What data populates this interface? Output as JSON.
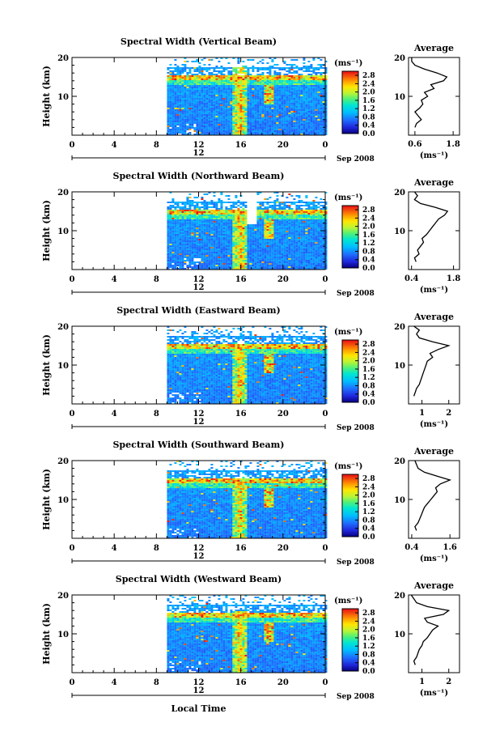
{
  "chart_data": {
    "type": "heatmap",
    "common": {
      "xlim": [
        0,
        24
      ],
      "x_ticks": [
        "0",
        "4",
        "8",
        "12",
        "16",
        "20",
        "0"
      ],
      "date_marker": "12",
      "date_suffix": "Sep 2008",
      "ylim": [
        0,
        20
      ],
      "y_ticks": [
        "10",
        "20"
      ],
      "ylabel": "Height (km)",
      "xlabel": "Local Time",
      "data_start_hour": 9,
      "colorbar_unit": "(ms⁻¹)",
      "colorbar_ticks": [
        "0.0",
        "0.4",
        "0.8",
        "1.2",
        "1.6",
        "2.0",
        "2.4",
        "2.8"
      ],
      "colorbar_range": [
        0.0,
        3.0
      ],
      "average_title": "Average",
      "average_unit": "(ms⁻¹)",
      "average_ylim": [
        0,
        20
      ],
      "average_y_ticks": [
        "10",
        "20"
      ]
    },
    "panels": [
      {
        "title": "Spectral Width (Vertical Beam)",
        "avg_xticks": [
          {
            "v": 0.6,
            "label": "0.6"
          },
          {
            "v": 1.8,
            "label": "1.8"
          }
        ],
        "avg_xlim": [
          0.4,
          2.0
        ],
        "avg_profile": [
          [
            0.6,
            2
          ],
          [
            0.65,
            3
          ],
          [
            0.8,
            4
          ],
          [
            0.7,
            5
          ],
          [
            0.6,
            6
          ],
          [
            0.75,
            7
          ],
          [
            0.85,
            8
          ],
          [
            0.8,
            9
          ],
          [
            1.0,
            10
          ],
          [
            0.9,
            11
          ],
          [
            1.2,
            12
          ],
          [
            1.1,
            13
          ],
          [
            1.5,
            14
          ],
          [
            1.6,
            15
          ],
          [
            1.3,
            16
          ],
          [
            0.9,
            17
          ],
          [
            0.6,
            18
          ],
          [
            0.5,
            19
          ],
          [
            0.5,
            20
          ]
        ]
      },
      {
        "title": "Spectral Width (Northward Beam)",
        "avg_xticks": [
          {
            "v": 0.4,
            "label": "0.4"
          },
          {
            "v": 1.8,
            "label": "1.8"
          }
        ],
        "avg_xlim": [
          0.3,
          2.0
        ],
        "avg_profile": [
          [
            0.55,
            2
          ],
          [
            0.5,
            3
          ],
          [
            0.65,
            4
          ],
          [
            0.6,
            5
          ],
          [
            0.7,
            6
          ],
          [
            0.8,
            7
          ],
          [
            0.75,
            8
          ],
          [
            0.9,
            9
          ],
          [
            1.0,
            10
          ],
          [
            1.1,
            11
          ],
          [
            1.2,
            12
          ],
          [
            1.3,
            13
          ],
          [
            1.5,
            14
          ],
          [
            1.6,
            15
          ],
          [
            1.2,
            16
          ],
          [
            0.7,
            17
          ],
          [
            0.5,
            18
          ],
          [
            0.6,
            19
          ],
          [
            0.5,
            20
          ]
        ]
      },
      {
        "title": "Spectral Width (Eastward Beam)",
        "avg_xticks": [
          {
            "v": 1,
            "label": "1"
          },
          {
            "v": 2,
            "label": "2"
          }
        ],
        "avg_xlim": [
          0.5,
          2.4
        ],
        "avg_profile": [
          [
            0.7,
            2
          ],
          [
            0.75,
            3
          ],
          [
            0.8,
            4
          ],
          [
            0.9,
            5
          ],
          [
            0.95,
            6
          ],
          [
            1.0,
            7
          ],
          [
            1.05,
            8
          ],
          [
            1.1,
            9
          ],
          [
            1.15,
            10
          ],
          [
            1.2,
            11
          ],
          [
            1.4,
            12
          ],
          [
            1.3,
            13
          ],
          [
            1.6,
            14
          ],
          [
            2.0,
            15
          ],
          [
            1.4,
            16
          ],
          [
            0.9,
            17
          ],
          [
            0.8,
            18
          ],
          [
            0.9,
            19
          ],
          [
            0.7,
            20
          ]
        ]
      },
      {
        "title": "Spectral Width (Southward Beam)",
        "avg_xticks": [
          {
            "v": 0.4,
            "label": "0.4"
          },
          {
            "v": 1.6,
            "label": "1.6"
          }
        ],
        "avg_xlim": [
          0.3,
          1.9
        ],
        "avg_profile": [
          [
            0.55,
            2
          ],
          [
            0.5,
            3
          ],
          [
            0.6,
            4
          ],
          [
            0.65,
            5
          ],
          [
            0.7,
            6
          ],
          [
            0.75,
            7
          ],
          [
            0.8,
            8
          ],
          [
            0.9,
            9
          ],
          [
            1.0,
            10
          ],
          [
            1.1,
            11
          ],
          [
            1.2,
            12
          ],
          [
            1.15,
            13
          ],
          [
            1.3,
            14
          ],
          [
            1.6,
            15
          ],
          [
            1.2,
            16
          ],
          [
            0.8,
            17
          ],
          [
            0.6,
            18
          ],
          [
            0.55,
            19
          ],
          [
            0.5,
            20
          ]
        ]
      },
      {
        "title": "Spectral Width (Westward Beam)",
        "avg_xticks": [
          {
            "v": 1,
            "label": "1"
          },
          {
            "v": 2,
            "label": "2"
          }
        ],
        "avg_xlim": [
          0.5,
          2.4
        ],
        "avg_profile": [
          [
            0.75,
            2
          ],
          [
            0.7,
            3
          ],
          [
            0.8,
            4
          ],
          [
            0.85,
            5
          ],
          [
            0.9,
            6
          ],
          [
            1.0,
            7
          ],
          [
            1.05,
            8
          ],
          [
            1.2,
            9
          ],
          [
            1.3,
            10
          ],
          [
            1.4,
            11
          ],
          [
            1.6,
            12
          ],
          [
            1.2,
            13
          ],
          [
            1.1,
            14
          ],
          [
            1.8,
            15
          ],
          [
            2.0,
            16
          ],
          [
            1.2,
            17
          ],
          [
            0.8,
            18
          ],
          [
            0.7,
            19
          ],
          [
            0.6,
            20
          ]
        ]
      }
    ]
  }
}
